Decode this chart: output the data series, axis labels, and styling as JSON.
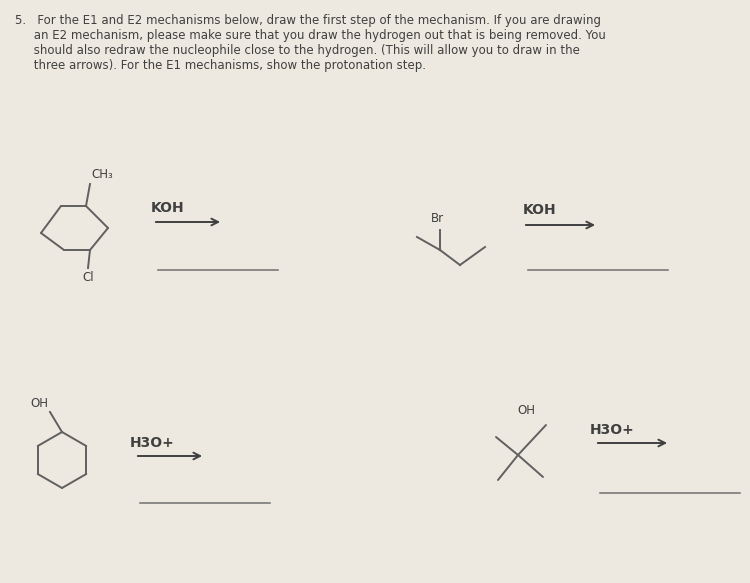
{
  "bg_color": "#ede9e0",
  "text_color": "#404040",
  "line_color": "#606060",
  "answer_line_color": "#707070",
  "arrow_color": "#404040",
  "title_lines": [
    "5.   For the E1 and E2 mechanisms below, draw the first step of the mechanism. If you are drawing",
    "     an E2 mechanism, please make sure that you draw the hydrogen out that is being removed. You",
    "     should also redraw the nucleophile close to the hydrogen. (This will allow you to draw in the",
    "     three arrows). For the E1 mechanisms, show the protonation step."
  ]
}
